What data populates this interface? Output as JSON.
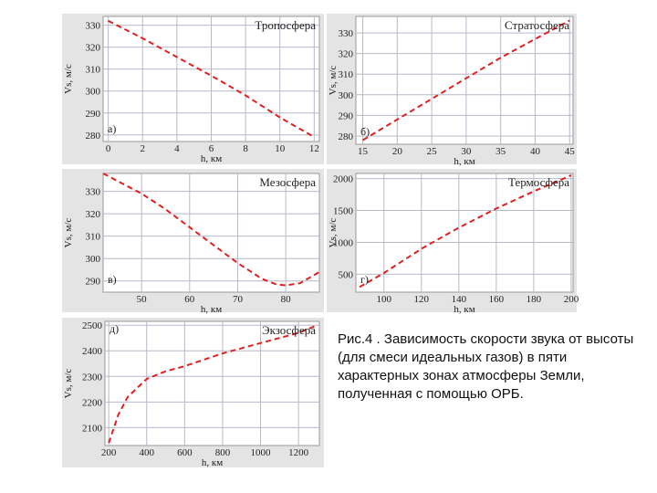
{
  "chart_data": [
    {
      "type": "line",
      "title": "Тропосфера",
      "label": "а)",
      "xlabel": "h, км",
      "ylabel": "Vs, м/с",
      "x": [
        0,
        2,
        4,
        6,
        8,
        10,
        12
      ],
      "values": [
        332,
        324,
        315.5,
        307,
        298,
        288,
        279
      ],
      "color": "#e02020",
      "xlim": [
        -0.3,
        12.3
      ],
      "xticks": [
        0,
        2,
        4,
        6,
        8,
        10,
        12
      ],
      "ylim": [
        277,
        334
      ],
      "yticks": [
        280,
        290,
        300,
        310,
        320,
        330
      ],
      "grid": true
    },
    {
      "type": "line",
      "title": "Стратосфера",
      "label": "б)",
      "xlabel": "h, км",
      "ylabel": "Vs, м/с",
      "x": [
        15,
        20,
        25,
        30,
        35,
        40,
        45
      ],
      "values": [
        278,
        288,
        298,
        308,
        318,
        327,
        336
      ],
      "color": "#e02020",
      "xlim": [
        14,
        45.5
      ],
      "xticks": [
        15,
        20,
        25,
        30,
        35,
        40,
        45
      ],
      "ylim": [
        276,
        338
      ],
      "yticks": [
        280,
        290,
        300,
        310,
        320,
        330
      ],
      "grid": true
    },
    {
      "type": "line",
      "title": "Мезосфера",
      "label": "в)",
      "xlabel": "h, км",
      "ylabel": "Vs, м/с",
      "x": [
        42,
        50,
        55,
        60,
        65,
        70,
        75,
        78,
        80,
        83,
        87
      ],
      "values": [
        338,
        329,
        322,
        314,
        306,
        298,
        291,
        288.5,
        288,
        289,
        294
      ],
      "color": "#e02020",
      "xlim": [
        42,
        87
      ],
      "xticks": [
        50,
        60,
        70,
        80
      ],
      "ylim": [
        285,
        338
      ],
      "yticks": [
        290,
        300,
        310,
        320,
        330
      ],
      "grid": true
    },
    {
      "type": "line",
      "title": "Термосфера",
      "label": "г)",
      "xlabel": "h, км",
      "ylabel": "Vs, м/с",
      "x": [
        87,
        100,
        120,
        140,
        160,
        180,
        200
      ],
      "values": [
        300,
        520,
        900,
        1230,
        1530,
        1800,
        2050
      ],
      "color": "#e02020",
      "xlim": [
        85,
        201
      ],
      "xticks": [
        100,
        120,
        140,
        160,
        180,
        200
      ],
      "ylim": [
        220,
        2080
      ],
      "yticks": [
        500,
        1000,
        1500,
        2000
      ],
      "grid": true
    },
    {
      "type": "line",
      "title": "Экзосфера",
      "label": "д)",
      "xlabel": "h, км",
      "ylabel": "Vs, м/с",
      "x": [
        200,
        250,
        300,
        400,
        500,
        600,
        800,
        1000,
        1200,
        1300
      ],
      "values": [
        2040,
        2150,
        2220,
        2290,
        2320,
        2340,
        2390,
        2430,
        2470,
        2500
      ],
      "color": "#e02020",
      "xlim": [
        180,
        1310
      ],
      "xticks": [
        200,
        400,
        600,
        800,
        1000,
        1200
      ],
      "ylim": [
        2030,
        2515
      ],
      "yticks": [
        2100,
        2200,
        2300,
        2400,
        2500
      ],
      "grid": true
    }
  ],
  "caption": "Рис.4 . Зависимость скорости звука от высоты (для смеси идеальных газов) в пяти характерных зонах атмосферы Земли, полученная с помощью ОРБ."
}
